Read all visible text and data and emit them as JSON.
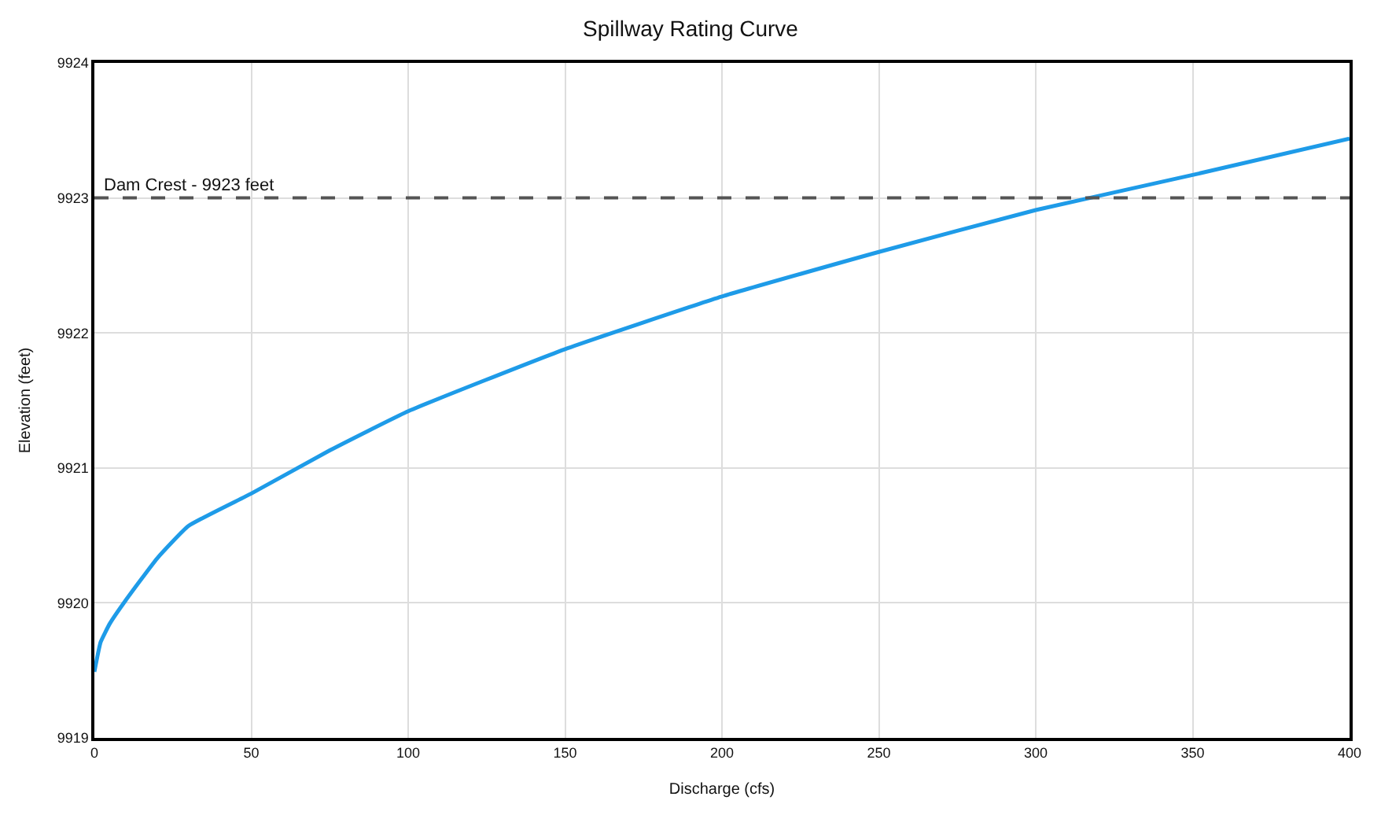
{
  "chart_data": {
    "type": "line",
    "title": "Spillway Rating Curve",
    "xlabel": "Discharge (cfs)",
    "ylabel": "Elevation (feet)",
    "x": [
      0,
      2,
      5,
      10,
      20,
      30,
      50,
      75,
      100,
      150,
      200,
      250,
      300,
      350,
      400
    ],
    "series": [
      {
        "color": "#1e9be8",
        "values": [
          9919.49,
          9919.71,
          9919.85,
          9920.02,
          9920.33,
          9920.57,
          9920.81,
          9921.13,
          9921.42,
          9921.88,
          9922.27,
          9922.6,
          9922.91,
          9923.17,
          9923.44
        ]
      }
    ],
    "xlim": [
      0,
      400
    ],
    "xticks": [
      0,
      50,
      100,
      150,
      200,
      250,
      300,
      350,
      400
    ],
    "ylim": [
      9919,
      9924
    ],
    "yticks": [
      9919,
      9920,
      9921,
      9922,
      9923,
      9924
    ],
    "ref_lines": [
      {
        "axis": "y",
        "value": 9923,
        "label": "Dam Crest - 9923 feet",
        "color": "#555555",
        "line_style": "dashed"
      }
    ],
    "grid": true,
    "marker": "none",
    "line_style": "solid"
  }
}
